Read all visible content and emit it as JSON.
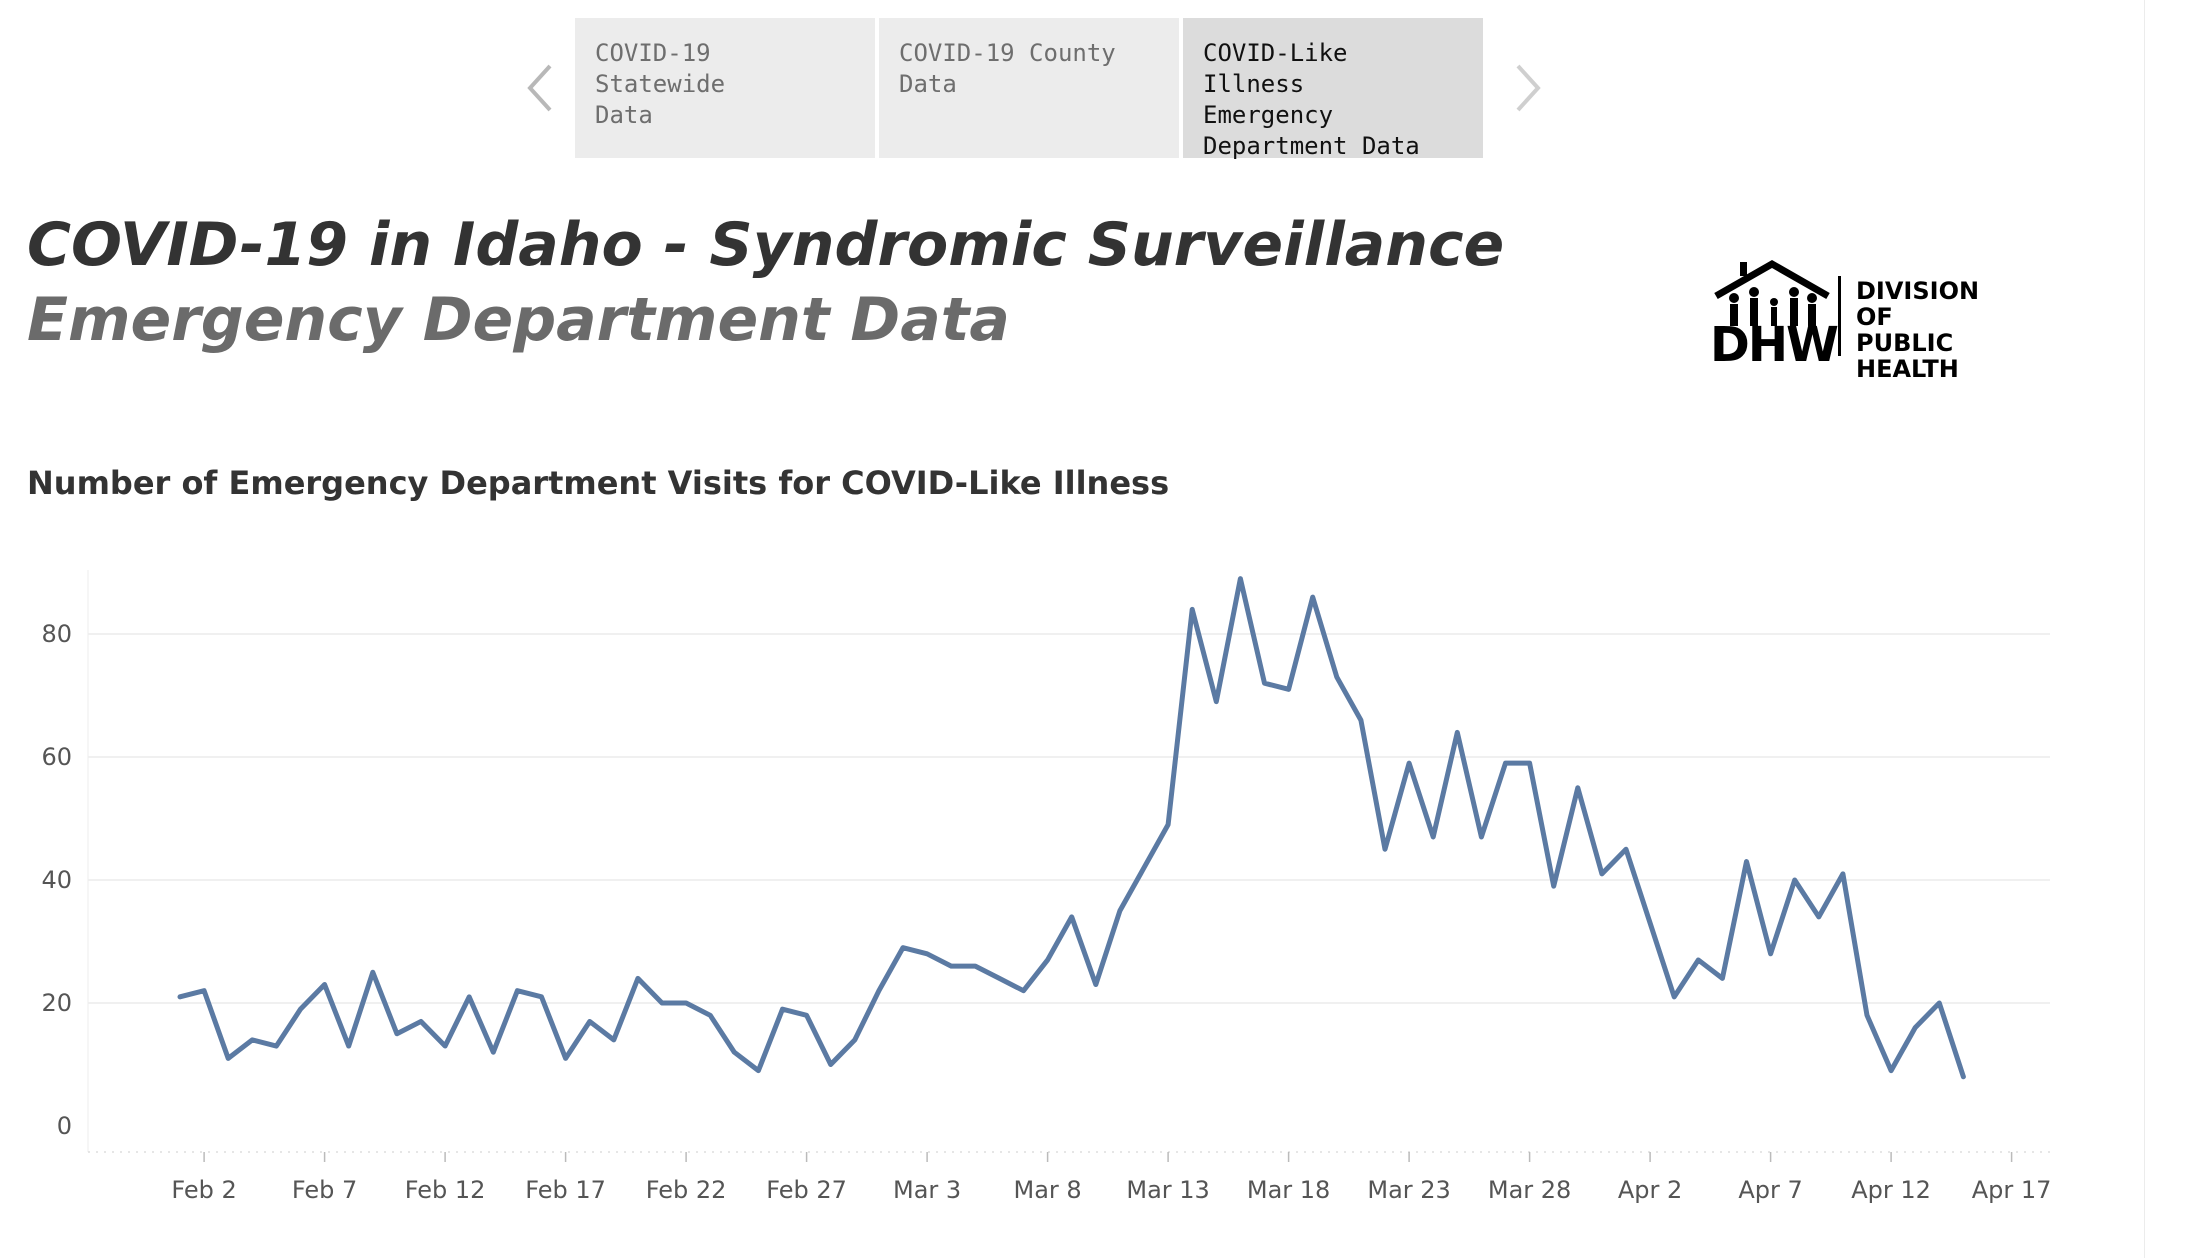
{
  "tabs": [
    {
      "label": "COVID-19 Statewide\nData",
      "active": false
    },
    {
      "label": "COVID-19 County\nData",
      "active": false
    },
    {
      "label": "COVID-Like Illness\nEmergency\nDepartment Data",
      "active": true
    }
  ],
  "header": {
    "title_line_1": "COVID-19 in Idaho - Syndromic Surveillance",
    "title_line_2": "Emergency Department Data"
  },
  "logo": {
    "mark": "DHW",
    "org_name": "DIVISION OF\nPUBLIC\nHEALTH"
  },
  "colors": {
    "line": "#5b7aa3",
    "gridline": "#ececec",
    "tab_bg": "#ececec",
    "tab_active_bg": "#dcdcdc"
  },
  "chart_data": {
    "type": "line",
    "title": "Number of Emergency Department Visits for COVID-Like Illness",
    "xlabel": "",
    "ylabel": "",
    "x_start": "2020-02-01",
    "x_ticks": [
      "Feb 2",
      "Feb 7",
      "Feb 12",
      "Feb 17",
      "Feb 22",
      "Feb 27",
      "Mar 3",
      "Mar 8",
      "Mar 13",
      "Mar 18",
      "Mar 23",
      "Mar 28",
      "Apr 2",
      "Apr 7",
      "Apr 12",
      "Apr 17"
    ],
    "y_ticks": [
      0,
      20,
      40,
      60,
      80
    ],
    "ylim": [
      0,
      90
    ],
    "grid": true,
    "series": [
      {
        "values": [
          21,
          22,
          11,
          14,
          13,
          19,
          23,
          13,
          25,
          15,
          17,
          13,
          21,
          12,
          22,
          21,
          11,
          17,
          14,
          24,
          20,
          20,
          18,
          12,
          9,
          19,
          18,
          10,
          14,
          22,
          29,
          28,
          26,
          26,
          24,
          22,
          27,
          34,
          23,
          35,
          42,
          49,
          84,
          69,
          89,
          72,
          71,
          86,
          73,
          66,
          45,
          59,
          47,
          64,
          47,
          59,
          59,
          39,
          55,
          41,
          45,
          33,
          21,
          27,
          24,
          43,
          28,
          40,
          34,
          41,
          18,
          9,
          16,
          20,
          8
        ]
      }
    ]
  }
}
